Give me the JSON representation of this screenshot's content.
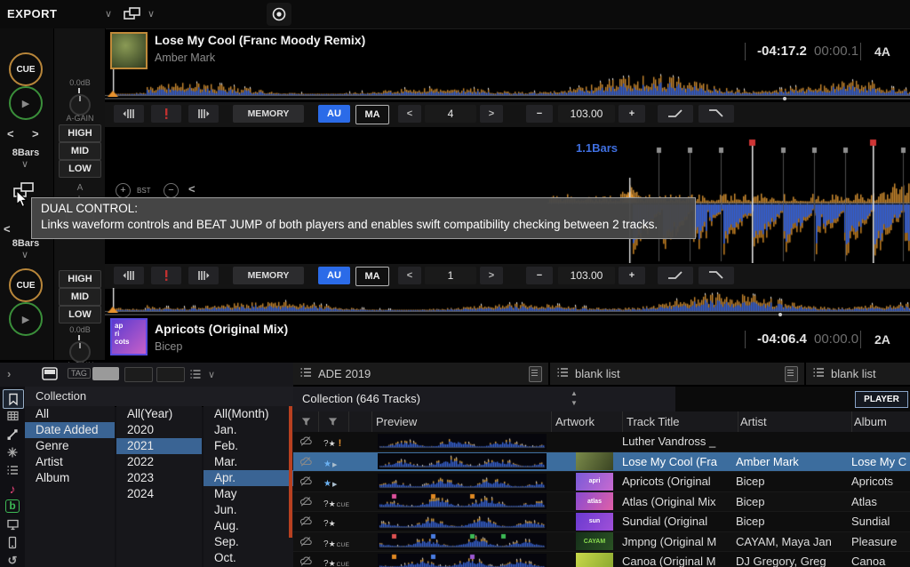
{
  "topbar": {
    "export_label": "EXPORT"
  },
  "glyphs": {
    "chevron_down": "∨",
    "chevron_left": "<",
    "chevron_right": ">",
    "minus": "−",
    "plus": "+",
    "expand": "›",
    "back": "‹"
  },
  "labels": {
    "cue": "CUE",
    "bars": "8Bars"
  },
  "deck1": {
    "title": "Lose My Cool (Franc Moody Remix)",
    "artist": "Amber Mark",
    "time_remaining": "-04:17.2",
    "time_elapsed": "00:00.1",
    "key": "4A",
    "memory": "MEMORY",
    "au": "AU",
    "ma": "MA",
    "beat_jump": "4",
    "bpm": "103.00"
  },
  "deck2": {
    "title": "Apricots (Original Mix)",
    "artist": "Bicep",
    "time_remaining": "-04:06.4",
    "time_elapsed": "00:00.0",
    "key": "2A",
    "memory": "MEMORY",
    "au": "AU",
    "ma": "MA",
    "beat_jump": "1",
    "bpm": "103.00"
  },
  "eq": {
    "gain_db": "0.0dB",
    "gain": "A-GAIN",
    "high": "HIGH",
    "mid": "MID",
    "low": "LOW",
    "fader": "A"
  },
  "middle": {
    "bars_position": "1.1Bars",
    "bst": "BST"
  },
  "tooltip": {
    "title": "DUAL CONTROL:",
    "body": "Links waveform controls and BEAT JUMP of both players and enables swift compatibility checking between 2 tracks."
  },
  "colors": {
    "accent_blue": "#2b6be8",
    "selection_blue": "#3c6d9e",
    "waveform_orange": "#c9882e",
    "waveform_blue": "#2b5fe0",
    "cue_ring": "#b8863a",
    "play_ring": "#3a8f3a",
    "bars_text": "#3f6fe0"
  },
  "browser": {
    "toolbar": {
      "tag": "TAG"
    },
    "sidebar_icons": [
      "bookmark",
      "grid",
      "link",
      "node",
      "list",
      "music",
      "beatport",
      "monitor",
      "phone",
      "history"
    ],
    "collection_label": "Collection",
    "tree_columns": [
      {
        "items": [
          "All",
          "Date Added",
          "Genre",
          "Artist",
          "Album"
        ],
        "selected_index": 1
      },
      {
        "items": [
          "All(Year)",
          "2020",
          "2021",
          "2022",
          "2023",
          "2024"
        ],
        "selected_index": 2
      },
      {
        "items": [
          "All(Month)",
          "Jan.",
          "Feb.",
          "Mar.",
          "Apr.",
          "May",
          "Jun.",
          "Aug.",
          "Sep.",
          "Oct."
        ],
        "selected_index": 4
      }
    ],
    "tabs": [
      "ADE 2019",
      "blank list",
      "blank list"
    ],
    "collection_header": "Collection (646 Tracks)",
    "player_button": "PLAYER",
    "table": {
      "headers": [
        "Preview",
        "Artwork",
        "Track Title",
        "Artist",
        "Album"
      ],
      "rows": [
        {
          "title": "Luther Vandross _",
          "artist": "",
          "album": "",
          "tag": "q-star-bang",
          "artwork": null,
          "selected": false,
          "cues": []
        },
        {
          "title": "Lose My Cool (Fra",
          "artist": "Amber Mark",
          "album": "Lose My C",
          "tag": "star-play",
          "artwork": {
            "colors": [
              "#7a8a4a",
              "#3a4422"
            ],
            "label": ""
          },
          "selected": true,
          "cues": []
        },
        {
          "title": "Apricots (Original",
          "artist": "Bicep",
          "album": "Apricots",
          "tag": "star-play",
          "artwork": {
            "colors": [
              "#7a5ad8",
              "#c86ad0"
            ],
            "label": "apri"
          },
          "selected": false,
          "cues": []
        },
        {
          "title": "Atlas (Original Mix",
          "artist": "Bicep",
          "album": "Atlas",
          "tag": "q-star-cue",
          "artwork": {
            "colors": [
              "#8a4ad0",
              "#e060a8"
            ],
            "label": "atlas"
          },
          "selected": false,
          "cues": [
            "#e0529c",
            "#e08922",
            "#e08922"
          ]
        },
        {
          "title": "Sundial (Original",
          "artist": "Bicep",
          "album": "Sundial",
          "tag": "q-star",
          "artwork": {
            "colors": [
              "#6a3ad0",
              "#a050d8"
            ],
            "label": "sun"
          },
          "selected": false,
          "cues": []
        },
        {
          "title": "Jmpng (Original M",
          "artist": "CAYAM, Maya Jan",
          "album": "Pleasure",
          "tag": "q-star-cue",
          "artwork": {
            "colors": [
              "#16301a",
              "#2a5224"
            ],
            "label": "CAYAM"
          },
          "selected": false,
          "cues": [
            "#e05252",
            "#4a7de0",
            "#3dba55",
            "#3dba55"
          ]
        },
        {
          "title": "Canoa (Original M",
          "artist": "DJ Gregory, Greg",
          "album": "Canoa",
          "tag": "q-star-cue",
          "artwork": {
            "colors": [
              "#c8d84a",
              "#8aa830"
            ],
            "label": ""
          },
          "selected": false,
          "cues": [
            "#e08922",
            "#4a7de0",
            "#9b59d0"
          ]
        }
      ]
    }
  }
}
